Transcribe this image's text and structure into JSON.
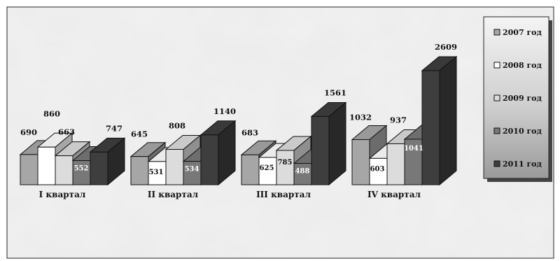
{
  "chart_data": {
    "type": "bar",
    "categories": [
      "I квартал",
      "II квартал",
      "III квартал",
      "IV квартал"
    ],
    "series": [
      {
        "name": "2007 год",
        "values": [
          690,
          645,
          683,
          1032
        ],
        "color": "#a6a6a6"
      },
      {
        "name": "2008 год",
        "values": [
          860,
          531,
          625,
          603
        ],
        "color": "#ffffff"
      },
      {
        "name": "2009 год",
        "values": [
          663,
          808,
          785,
          937
        ],
        "color": "#dcdcdc"
      },
      {
        "name": "2010 год",
        "values": [
          552,
          534,
          488,
          1041
        ],
        "color": "#787878"
      },
      {
        "name": "2011 год",
        "values": [
          747,
          1140,
          1561,
          2609
        ],
        "color": "#3e3e3e"
      }
    ],
    "legend_position": "right",
    "grid": false,
    "bar_style": "3d"
  }
}
